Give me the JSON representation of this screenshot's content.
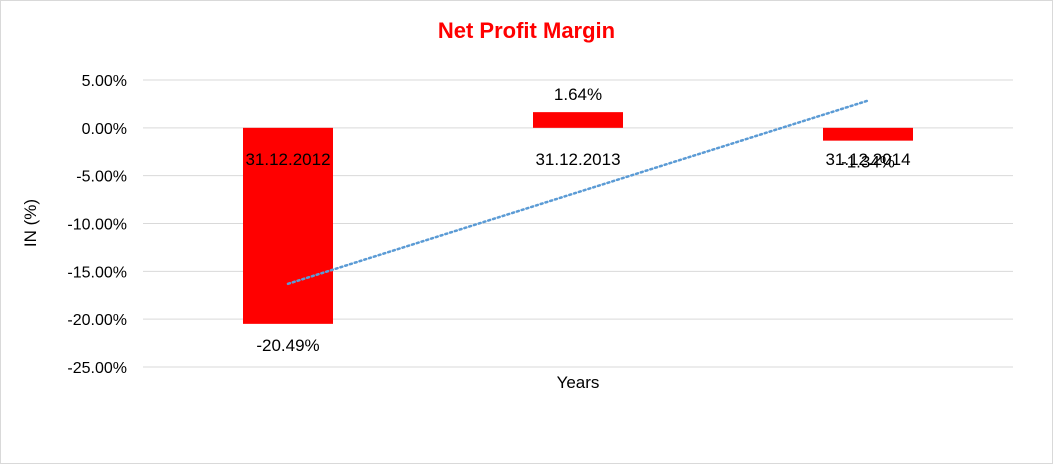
{
  "chart_data": {
    "type": "bar",
    "title": "Net Profit Margin",
    "xlabel": "Years",
    "ylabel": "IN (%)",
    "categories": [
      "31.12.2012",
      "31.12.2013",
      "31.12.2014"
    ],
    "series": [
      {
        "values": [
          -20.49,
          1.64,
          -1.34
        ]
      }
    ],
    "data_labels": [
      "-20.49%",
      "1.64%",
      "-1.34%"
    ],
    "ylim": [
      -25,
      5
    ],
    "yticks": [
      5,
      0,
      -5,
      -10,
      -15,
      -20,
      -25
    ],
    "ytick_labels": [
      "5.00%",
      "0.00%",
      "-5.00%",
      "-10.00%",
      "-15.00%",
      "-20.00%",
      "-25.00%"
    ],
    "trendline": {
      "type": "linear",
      "style": "dotted"
    },
    "grid": true,
    "legend": "none",
    "colors": {
      "bar": "#ff0000",
      "trendline": "#5b9bd5",
      "grid": "#d9d9d9",
      "title": "#ff0000"
    }
  }
}
